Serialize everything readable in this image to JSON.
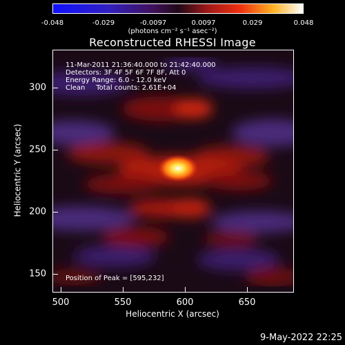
{
  "colorbar": {
    "ticks": [
      "-0.048",
      "-0.029",
      "-0.0097",
      "0.0097",
      "0.029",
      "0.048"
    ],
    "units": "(photons cm⁻² s⁻¹ asec⁻²)"
  },
  "title": "Reconstructed RHESSI Image",
  "info": {
    "time": "11-Mar-2011 21:36:40.000 to 21:42:40.000",
    "detectors": "Detectors: 3F 4F 5F 6F 7F 8F, Att 0",
    "energy": "Energy Range: 6.0 - 12.0 keV",
    "clean": "Clean     Total counts: 2.61E+04"
  },
  "peak": "Position of Peak = [595,232]",
  "axes": {
    "x_ticks": [
      "500",
      "550",
      "600",
      "650"
    ],
    "y_ticks": [
      "300",
      "250",
      "200",
      "150"
    ],
    "x_label": "Heliocentric X (arcsec)",
    "y_label": "Heliocentric Y (arcsec)",
    "x_range": [
      493,
      687
    ],
    "y_range": [
      135,
      330
    ]
  },
  "footer_date": "9-May-2022 22:25"
}
